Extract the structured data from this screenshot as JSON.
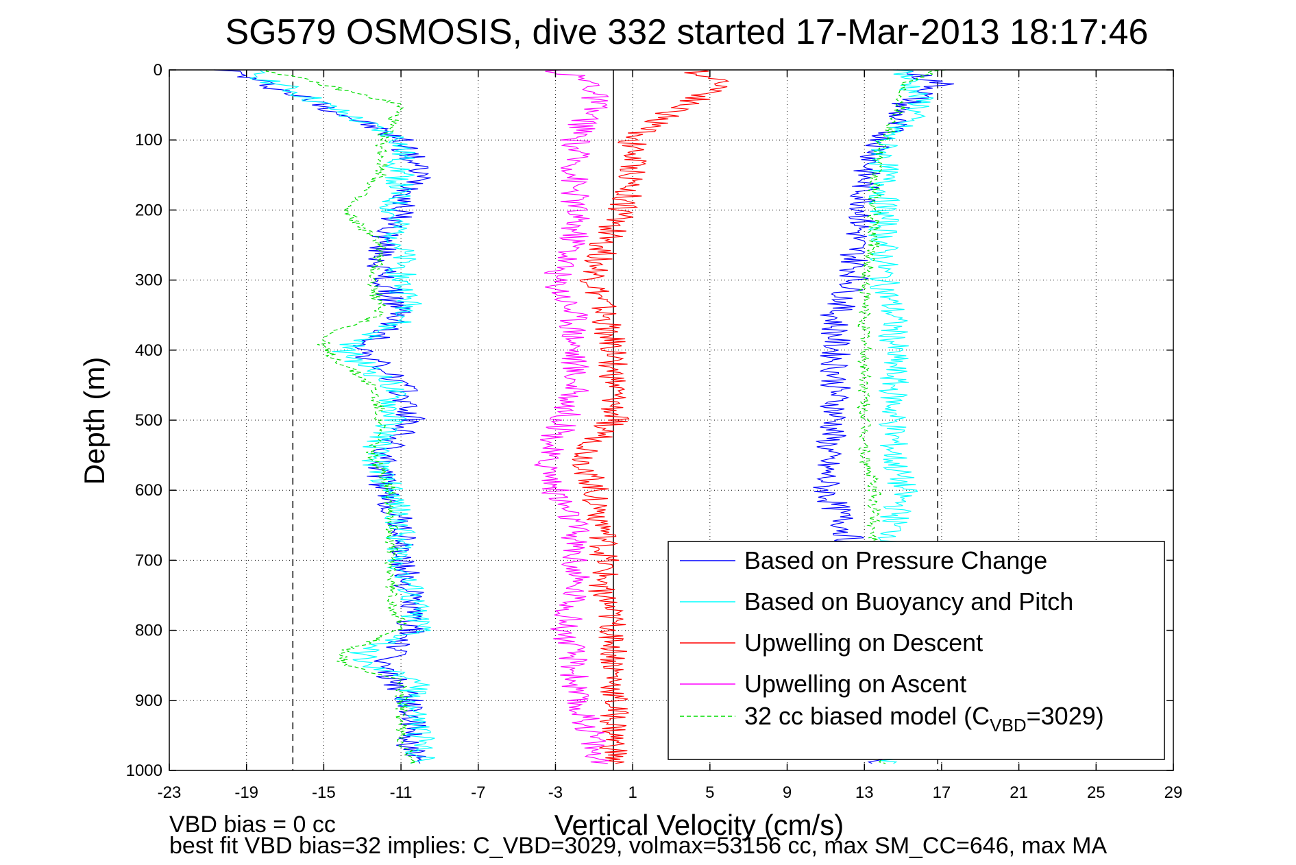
{
  "chart_data": {
    "type": "line",
    "title": "SG579 OSMOSIS, dive 332 started 17-Mar-2013 18:17:46",
    "xlabel": "Vertical Velocity (cm/s)",
    "ylabel": "Depth (m)",
    "xlim": [
      -23,
      29
    ],
    "ylim": [
      0,
      1000
    ],
    "y_reversed": true,
    "grid": true,
    "xticks": [
      "-23",
      "-19",
      "-15",
      "-11",
      "-7",
      "-3",
      "1",
      "5",
      "9",
      "13",
      "17",
      "21",
      "25",
      "29"
    ],
    "yticks": [
      "0",
      "100",
      "200",
      "300",
      "400",
      "500",
      "600",
      "700",
      "800",
      "900",
      "1000"
    ],
    "vertical_lines": [
      {
        "x": -16.6,
        "style": "dashed",
        "color": "#000000"
      },
      {
        "x": 16.8,
        "style": "dashed",
        "color": "#000000"
      },
      {
        "x": 0,
        "style": "solid",
        "color": "#000000"
      }
    ],
    "legend_position": "bottom-right",
    "legend": [
      {
        "label": "Based on Pressure Change",
        "color": "#0000ff",
        "dash": "solid"
      },
      {
        "label": "Based on Buoyancy and Pitch",
        "color": "#00ffff",
        "dash": "solid"
      },
      {
        "label": "Upwelling on Descent",
        "color": "#ff0000",
        "dash": "solid"
      },
      {
        "label": "Upwelling on Ascent",
        "color": "#ff00ff",
        "dash": "solid"
      },
      {
        "label_prefix": "32 cc biased model (C",
        "label_sub": "VBD",
        "label_suffix": "=3029)",
        "color": "#00dd00",
        "dash": "dashed"
      }
    ],
    "series": [
      {
        "name": "Based on Pressure Change",
        "color": "#0000ff",
        "segments": [
          {
            "depth": [
              0,
              20,
              50,
              100,
              150,
              200,
              250,
              300,
              350,
              400,
              450,
              500,
              550,
              600,
              650,
              700,
              750,
              800,
              850,
              900,
              950,
              990
            ],
            "x": [
              -20,
              -18,
              -15,
              -11,
              -10,
              -11,
              -12,
              -12,
              -11,
              -13,
              -11,
              -10.5,
              -12,
              -12,
              -11,
              -11,
              -10.5,
              -10.5,
              -12,
              -10.5,
              -10.5,
              -10.5
            ]
          },
          {
            "depth": [
              0,
              20,
              50,
              100,
              150,
              200,
              250,
              300,
              350,
              400,
              450,
              500,
              550,
              600,
              650,
              700,
              750,
              800,
              850,
              900,
              950,
              990
            ],
            "x": [
              15,
              17,
              15,
              14,
              13,
              13,
              12.5,
              12.5,
              11.5,
              11.5,
              11.5,
              11.5,
              11,
              11,
              12,
              12.5,
              13,
              13,
              13,
              13,
              13,
              14
            ]
          }
        ]
      },
      {
        "name": "Based on Buoyancy and Pitch",
        "color": "#00ffff",
        "segments": [
          {
            "depth": [
              0,
              50,
              100,
              150,
              200,
              250,
              300,
              350,
              400,
              450,
              500,
              550,
              600,
              650,
              700,
              750,
              800,
              830,
              850,
              870,
              900,
              950,
              990
            ],
            "x": [
              -19,
              -15,
              -11,
              -11,
              -11.5,
              -11,
              -11,
              -10.5,
              -14,
              -11.5,
              -11.5,
              -12.5,
              -11.5,
              -11,
              -11,
              -10.5,
              -10,
              -13,
              -13,
              -10,
              -10.5,
              -10,
              -10
            ]
          },
          {
            "depth": [
              0,
              50,
              100,
              150,
              200,
              250,
              300,
              350,
              400,
              450,
              500,
              550,
              600,
              650,
              700,
              750,
              800,
              850,
              900,
              950,
              990
            ],
            "x": [
              15,
              16,
              14,
              14,
              14,
              14,
              14,
              14.5,
              14.5,
              14.5,
              14.5,
              14.5,
              15,
              14.5,
              14.5,
              14.5,
              14.5,
              14.5,
              14.5,
              14.5,
              14.5
            ]
          }
        ]
      },
      {
        "name": "Upwelling on Descent",
        "color": "#ff0000",
        "segments": [
          {
            "depth": [
              0,
              20,
              60,
              100,
              150,
              200,
              250,
              300,
              350,
              400,
              450,
              500,
              550,
              600,
              650,
              700,
              750,
              800,
              850,
              900,
              950,
              990
            ],
            "x": [
              4,
              6,
              3,
              1,
              1,
              0.5,
              -0.5,
              -1,
              -0.5,
              0,
              0,
              0,
              -1.5,
              -1,
              -0.5,
              -0.5,
              -0.5,
              0,
              0,
              0,
              0,
              0
            ]
          }
        ]
      },
      {
        "name": "Upwelling on Ascent",
        "color": "#ff00ff",
        "segments": [
          {
            "depth": [
              0,
              20,
              50,
              100,
              150,
              200,
              250,
              300,
              350,
              400,
              450,
              500,
              550,
              600,
              650,
              700,
              750,
              800,
              850,
              900,
              950,
              990
            ],
            "x": [
              -3,
              -1,
              -1,
              -2,
              -2,
              -2,
              -2,
              -3,
              -2,
              -2,
              -2,
              -2.5,
              -3.5,
              -3,
              -2,
              -2,
              -2,
              -2.5,
              -2,
              -2,
              -1,
              -1
            ]
          }
        ]
      },
      {
        "name": "32 cc biased model (CVBD=3029)",
        "color": "#00dd00",
        "dash": "dashed",
        "segments": [
          {
            "depth": [
              0,
              50,
              100,
              150,
              200,
              250,
              300,
              350,
              380,
              400,
              450,
              500,
              550,
              600,
              650,
              700,
              750,
              800,
              830,
              850,
              870,
              900,
              950,
              990
            ],
            "x": [
              -18,
              -11,
              -12,
              -12,
              -14,
              -12,
              -12.5,
              -12,
              -15,
              -15,
              -12.5,
              -12,
              -12.5,
              -11.5,
              -11.5,
              -11.5,
              -11.5,
              -11,
              -14,
              -14,
              -11,
              -11,
              -11,
              -10.5
            ]
          },
          {
            "depth": [
              0,
              20,
              50,
              100,
              150,
              200,
              250,
              300,
              350,
              400,
              450,
              500,
              550,
              600,
              650,
              700,
              750,
              800,
              850,
              900,
              950,
              990
            ],
            "x": [
              17,
              15,
              15,
              14,
              13.5,
              13.5,
              13.5,
              13,
              13,
              13,
              13,
              13,
              13,
              13.5,
              13.5,
              13.5,
              13.5,
              13.5,
              13.5,
              13.5,
              13.5,
              14
            ]
          }
        ]
      }
    ]
  },
  "footnotes": {
    "line1": "VBD bias = 0 cc",
    "line2": "best fit VBD bias=32 implies: C_VBD=3029, volmax=53156 cc, max SM_CC=646, max MA"
  }
}
